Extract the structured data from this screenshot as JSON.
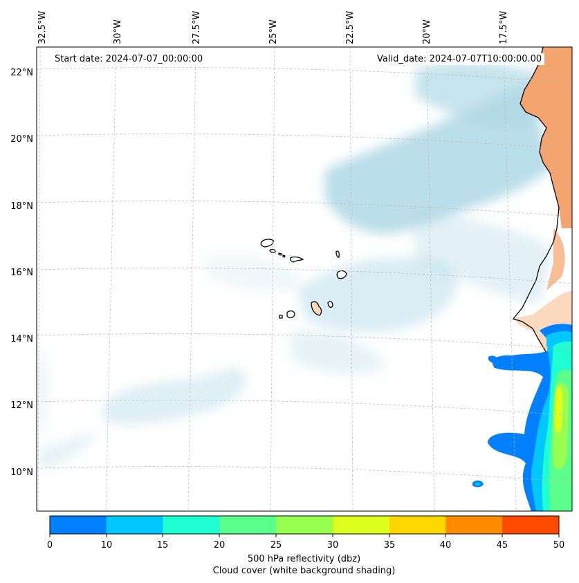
{
  "map": {
    "longitude_labels": [
      "32.5°W",
      "30°W",
      "27.5°W",
      "25°W",
      "22.5°W",
      "20°W",
      "17.5°W"
    ],
    "latitude_labels": [
      "22°N",
      "20°N",
      "18°N",
      "16°N",
      "14°N",
      "12°N",
      "10°N"
    ],
    "start_date": "Start date: 2024-07-07_00:00:00",
    "valid_date": "Valid_date: 2024-07-07T10:00:00.00"
  },
  "colorbar": {
    "ticks": [
      "0",
      "10",
      "15",
      "20",
      "25",
      "30",
      "35",
      "40",
      "45",
      "50"
    ],
    "colors": [
      "#0080ff",
      "#00c8ff",
      "#1effd2",
      "#5aff8c",
      "#98ff50",
      "#dcff1e",
      "#ffd700",
      "#ff8c00",
      "#ff4b00"
    ],
    "label_line1": "500 hPa reflectivity (dbz)",
    "label_line2": "Cloud cover (white background shading)"
  },
  "colors": {
    "land": "#f4a46e",
    "land_light": "#fbd9bf",
    "cloud": "#aed8e6",
    "grid": "#bbbbbb"
  }
}
